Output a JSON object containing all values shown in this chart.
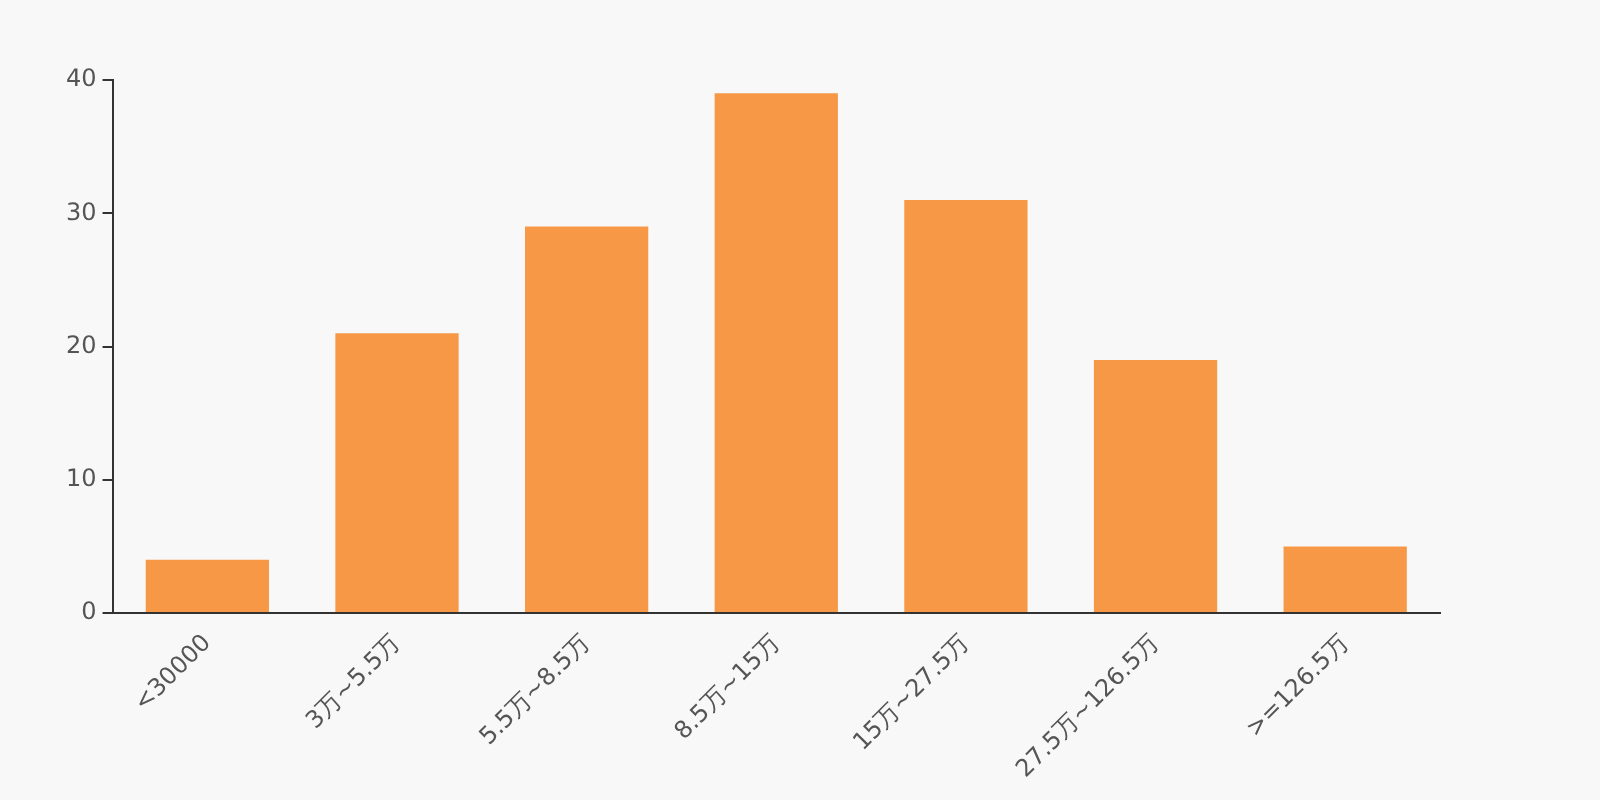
{
  "chart_data": {
    "type": "bar",
    "categories": [
      "<30000",
      "3万~5.5万",
      "5.5万~8.5万",
      "8.5万~15万",
      "15万~27.5万",
      "27.5万~126.5万",
      ">=126.5万"
    ],
    "values": [
      4,
      21,
      29,
      39,
      31,
      19,
      5
    ],
    "color": "#f79847",
    "ylim": [
      0,
      40
    ],
    "yticks": [
      0,
      10,
      20,
      30,
      40
    ],
    "grid": false,
    "legend": false
  }
}
